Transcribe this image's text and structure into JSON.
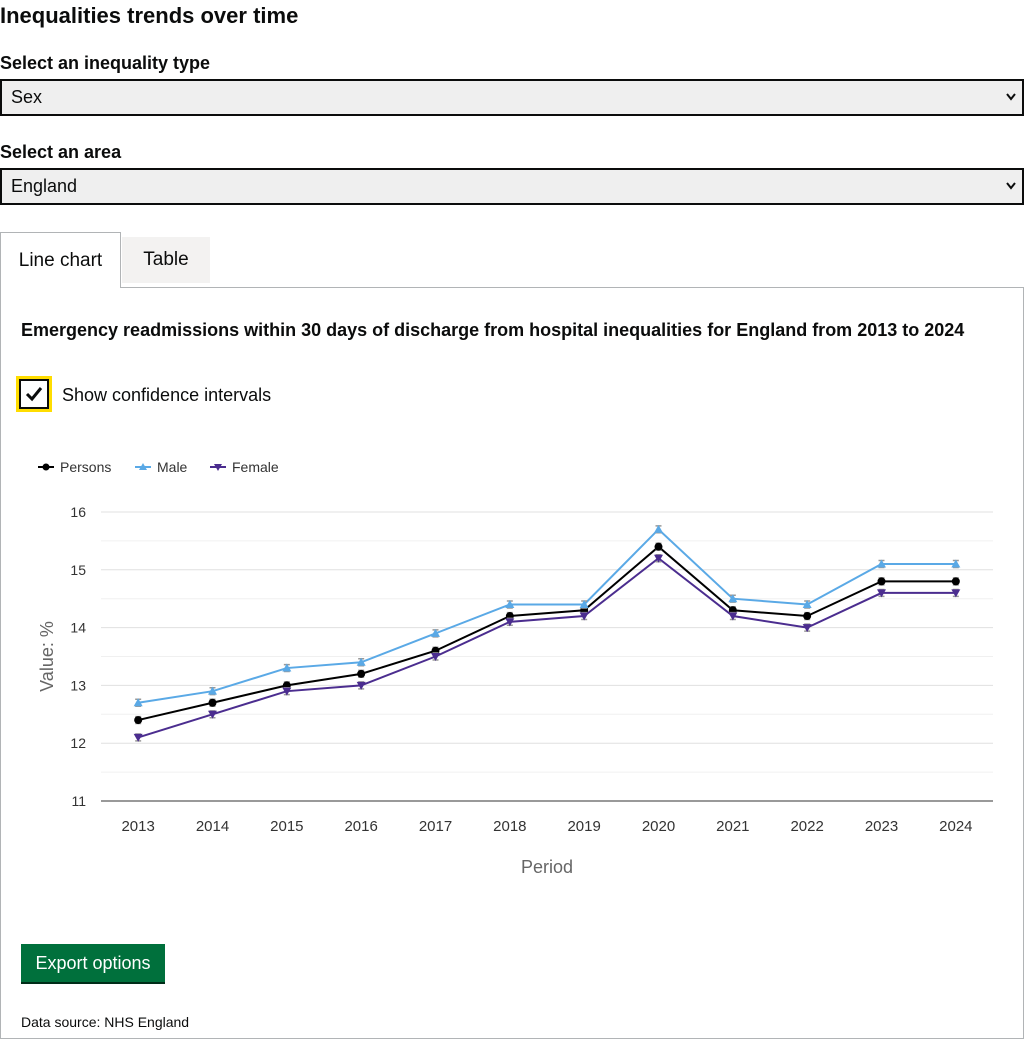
{
  "page": {
    "heading": "Inequalities trends over time"
  },
  "filters": {
    "inequality_label": "Select an inequality type",
    "inequality_value": "Sex",
    "area_label": "Select an area",
    "area_value": "England"
  },
  "tabs": [
    {
      "label": "Line chart",
      "active": true
    },
    {
      "label": "Table",
      "active": false
    }
  ],
  "chart_section": {
    "title": "Emergency readmissions within 30 days of discharge from hospital inequalities for England from 2013 to 2024",
    "checkbox_label": "Show confidence intervals",
    "checkbox_checked": true,
    "export_label": "Export options",
    "source": "Data source: NHS England"
  },
  "colors": {
    "persons": "#000000",
    "male": "#5aa9e6",
    "female": "#4b2d8f",
    "export_button": "#00703c",
    "focus": "#ffdd00"
  },
  "chart_data": {
    "type": "line",
    "title": "",
    "xlabel": "Period",
    "ylabel": "Value: %",
    "ylim": [
      11,
      16
    ],
    "yticks": [
      11,
      12,
      13,
      14,
      15,
      16
    ],
    "grid": true,
    "legend_position": "top-left",
    "categories": [
      "2013",
      "2014",
      "2015",
      "2016",
      "2017",
      "2018",
      "2019",
      "2020",
      "2021",
      "2022",
      "2023",
      "2024"
    ],
    "series": [
      {
        "name": "Persons",
        "marker": "circle",
        "values": [
          12.4,
          12.7,
          13.0,
          13.2,
          13.6,
          14.2,
          14.3,
          15.4,
          14.3,
          14.2,
          14.8,
          14.8
        ]
      },
      {
        "name": "Male",
        "marker": "triangle-up",
        "values": [
          12.7,
          12.9,
          13.3,
          13.4,
          13.9,
          14.4,
          14.4,
          15.7,
          14.5,
          14.4,
          15.1,
          15.1
        ]
      },
      {
        "name": "Female",
        "marker": "triangle-down",
        "values": [
          12.1,
          12.5,
          12.9,
          13.0,
          13.5,
          14.1,
          14.2,
          15.2,
          14.2,
          14.0,
          14.6,
          14.6
        ]
      }
    ]
  }
}
